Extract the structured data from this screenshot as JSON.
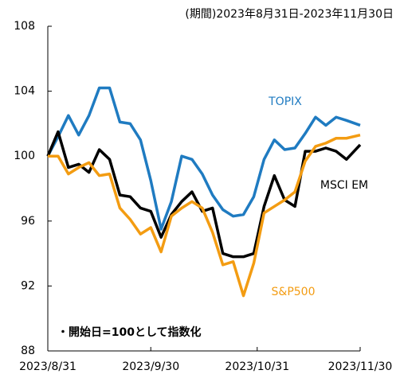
{
  "chart_data": {
    "type": "line",
    "subtitle": "(期間)2023年8月31日-2023年11月30日",
    "note": "・開始日=100として指数化",
    "x": [
      "2023/8/31",
      "2023/9/3",
      "2023/9/6",
      "2023/9/9",
      "2023/9/12",
      "2023/9/15",
      "2023/9/18",
      "2023/9/21",
      "2023/9/24",
      "2023/9/27",
      "2023/9/30",
      "2023/10/3",
      "2023/10/6",
      "2023/10/9",
      "2023/10/12",
      "2023/10/15",
      "2023/10/18",
      "2023/10/21",
      "2023/10/24",
      "2023/10/27",
      "2023/10/30",
      "2023/11/2",
      "2023/11/5",
      "2023/11/8",
      "2023/11/11",
      "2023/11/14",
      "2023/11/17",
      "2023/11/20",
      "2023/11/23",
      "2023/11/26",
      "2023/11/30"
    ],
    "series": [
      {
        "name": "TOPIX",
        "color": "#1f7bc1",
        "values": [
          100,
          101.2,
          102.5,
          101.3,
          102.5,
          104.2,
          104.2,
          102.1,
          102,
          101,
          98.5,
          95.5,
          97.2,
          100,
          99.8,
          98.9,
          97.6,
          96.7,
          96.3,
          96.4,
          97.5,
          99.8,
          101,
          100.4,
          100.5,
          101.4,
          102.4,
          101.9,
          102.4,
          102.2,
          101.9
        ]
      },
      {
        "name": "MSCI EM",
        "color": "#000000",
        "values": [
          100,
          101.5,
          99.3,
          99.5,
          99,
          100.4,
          99.8,
          97.6,
          97.5,
          96.8,
          96.6,
          95,
          96.4,
          97.2,
          97.8,
          96.6,
          96.8,
          94,
          93.8,
          93.8,
          94,
          96.9,
          98.8,
          97.3,
          96.9,
          100.3,
          100.3,
          100.5,
          100.3,
          99.8,
          100.7
        ]
      },
      {
        "name": "S&P500",
        "color": "#f39c12",
        "values": [
          100,
          100,
          98.9,
          99.3,
          99.6,
          98.8,
          98.9,
          96.8,
          96.1,
          95.2,
          95.6,
          94.1,
          96.3,
          96.8,
          97.2,
          96.8,
          95.3,
          93.3,
          93.5,
          91.4,
          93.4,
          96.5,
          96.9,
          97.3,
          97.8,
          99.7,
          100.6,
          100.8,
          101.1,
          101.1,
          101.3
        ]
      }
    ],
    "xlim": [
      "2023/8/31",
      "2023/11/30"
    ],
    "xticks": [
      "2023/8/31",
      "2023/9/30",
      "2023/10/31",
      "2023/11/30"
    ],
    "ylim": [
      88,
      108
    ],
    "yticks": [
      88,
      92,
      96,
      100,
      104,
      108
    ],
    "grid": false
  }
}
